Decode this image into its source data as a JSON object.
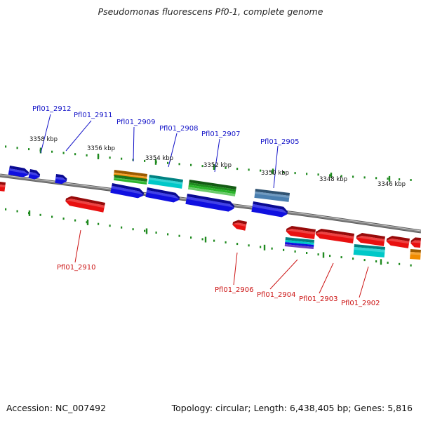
{
  "title": "Pseudomonas fluorescens Pf0-1, complete genome",
  "footer": {
    "accession": "Accession: NC_007492",
    "info": "Topology: circular; Length: 6,438,405 bp; Genes: 5,816"
  },
  "colors": {
    "backbone": "#808080",
    "tick": "#1f8a1f",
    "forward_label": "#1414c8",
    "reverse_label": "#cc1414",
    "blue": "#1010e0",
    "red": "#e81010",
    "orange": "#f08c00",
    "green": "#2ab52a",
    "dark_green": "#1e8c1e",
    "cyan": "#00c8c8",
    "steel_blue": "#4a7fb0",
    "purple_band": "#7040c0"
  },
  "kbp_labels": [
    "3358 kbp",
    "3356 kbp",
    "3354 kbp",
    "3352 kbp",
    "3350 kbp",
    "3348 kbp",
    "3346 kbp"
  ],
  "forward_gene_labels": [
    "Pfl01_2912",
    "Pfl01_2911",
    "Pfl01_2909",
    "Pfl01_2908",
    "Pfl01_2907",
    "Pfl01_2905"
  ],
  "reverse_gene_labels": [
    "Pfl01_2910",
    "Pfl01_2906",
    "Pfl01_2904",
    "Pfl01_2903",
    "Pfl01_2902"
  ]
}
